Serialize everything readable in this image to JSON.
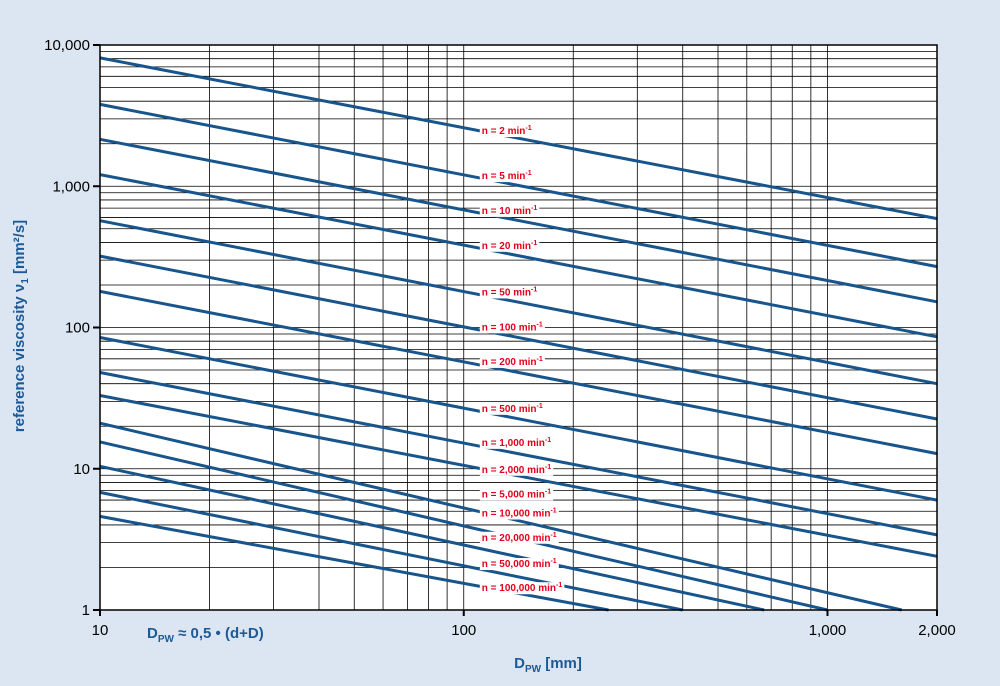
{
  "chart_data": {
    "type": "line",
    "x_scale": "log",
    "y_scale": "log",
    "xlim": [
      10,
      2000
    ],
    "ylim": [
      1,
      10000
    ],
    "grid": true,
    "xlabel": "D",
    "xlabel_sub": "PW",
    "xlabel_unit": " [mm]",
    "ylabel": "reference viscosity ν",
    "ylabel_sub": "1",
    "ylabel_unit": " [mm²/s]",
    "annotation": {
      "main": "D",
      "sub": "PW",
      "rest": " ≈ 0,5 • (d+D)"
    },
    "x_ticks": [
      {
        "value": 10,
        "label": "10"
      },
      {
        "value": 100,
        "label": "100"
      },
      {
        "value": 1000,
        "label": "1,000"
      },
      {
        "value": 2000,
        "label": "2,000"
      }
    ],
    "y_ticks": [
      {
        "value": 1,
        "label": "1"
      },
      {
        "value": 10,
        "label": "10"
      },
      {
        "value": 100,
        "label": "100"
      },
      {
        "value": 1000,
        "label": "1,000"
      },
      {
        "value": 10000,
        "label": "10,000"
      }
    ],
    "label_x": 110,
    "series": [
      {
        "name": "n = 2 min",
        "sup": "-1",
        "label_value": 2500,
        "x": [
          10,
          2000
        ],
        "y": [
          8100,
          590
        ]
      },
      {
        "name": "n = 5 min",
        "sup": "-1",
        "label_value": 1200,
        "x": [
          10,
          2000
        ],
        "y": [
          3800,
          270
        ]
      },
      {
        "name": "n = 10 min",
        "sup": "-1",
        "label_value": 680,
        "x": [
          10,
          2000
        ],
        "y": [
          2150,
          152
        ]
      },
      {
        "name": "n = 20 min",
        "sup": "-1",
        "label_value": 385,
        "x": [
          10,
          2000
        ],
        "y": [
          1210,
          86
        ]
      },
      {
        "name": "n = 50 min",
        "sup": "-1",
        "label_value": 180,
        "x": [
          10,
          2000
        ],
        "y": [
          570,
          40
        ]
      },
      {
        "name": "n = 100 min",
        "sup": "-1",
        "label_value": 102,
        "x": [
          10,
          2000
        ],
        "y": [
          320,
          22.5
        ]
      },
      {
        "name": "n = 200 min",
        "sup": "-1",
        "label_value": 58,
        "x": [
          10,
          2000
        ],
        "y": [
          180,
          12.8
        ]
      },
      {
        "name": "n = 500 min",
        "sup": "-1",
        "label_value": 27,
        "x": [
          10,
          2000
        ],
        "y": [
          85,
          6.0
        ]
      },
      {
        "name": "n = 1,000 min",
        "sup": "-1",
        "label_value": 15.5,
        "x": [
          10,
          2000
        ],
        "y": [
          48,
          3.4
        ]
      },
      {
        "name": "n = 2,000 min",
        "sup": "-1",
        "label_value": 10,
        "x": [
          10,
          2000
        ],
        "y": [
          33,
          2.4
        ]
      },
      {
        "name": "n = 5,000 min",
        "sup": "-1",
        "label_value": 6.7,
        "x": [
          10,
          1600
        ],
        "y": [
          21,
          1.0
        ]
      },
      {
        "name": "n = 10,000 min",
        "sup": "-1",
        "label_value": 4.9,
        "x": [
          10,
          1000
        ],
        "y": [
          15.5,
          1.0
        ]
      },
      {
        "name": "n = 20,000 min",
        "sup": "-1",
        "label_value": 3.3,
        "x": [
          10,
          670
        ],
        "y": [
          10.4,
          1.0
        ]
      },
      {
        "name": "n = 50,000 min",
        "sup": "-1",
        "label_value": 2.15,
        "x": [
          10,
          400
        ],
        "y": [
          6.8,
          1.0
        ]
      },
      {
        "name": "n = 100,000 min",
        "sup": "-1",
        "label_value": 1.45,
        "x": [
          10,
          250
        ],
        "y": [
          4.6,
          1.0
        ]
      }
    ]
  }
}
